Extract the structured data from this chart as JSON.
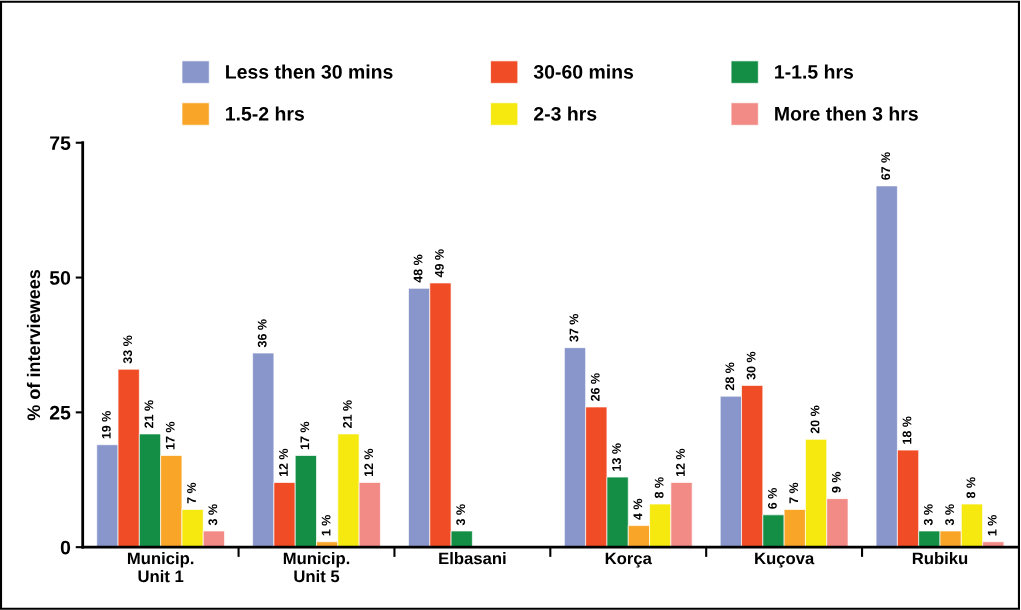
{
  "chart_data": {
    "type": "bar",
    "ylabel": "% of interviewees",
    "categories": [
      "Municip.\nUnit 1",
      "Municip.\nUnit 5",
      "Elbasani",
      "Korça",
      "Kuçova",
      "Rubiku"
    ],
    "series": [
      {
        "name": "Less then 30 mins",
        "color": "#8896cb",
        "values": [
          19,
          36,
          48,
          37,
          28,
          67
        ],
        "value_labels": [
          "19 %",
          "36 %",
          "48 %",
          "37 %",
          "28 %",
          "67 %"
        ]
      },
      {
        "name": "30-60 mins",
        "color": "#f04c25",
        "values": [
          33,
          12,
          49,
          26,
          30,
          18
        ],
        "value_labels": [
          "33 %",
          "12 %",
          "49 %",
          "26 %",
          "30 %",
          "18 %"
        ]
      },
      {
        "name": "1-1.5 hrs",
        "color": "#148e45",
        "values": [
          21,
          17,
          3,
          13,
          6,
          3
        ],
        "value_labels": [
          "21 %",
          "17 %",
          "3 %",
          "13 %",
          "6 %",
          "3 %"
        ]
      },
      {
        "name": "1.5-2 hrs",
        "color": "#f9a628",
        "values": [
          17,
          1,
          null,
          4,
          7,
          3
        ],
        "value_labels": [
          "17 %",
          "1 %",
          null,
          "4 %",
          "7 %",
          "3 %"
        ]
      },
      {
        "name": "2-3 hrs",
        "color": "#f5e90f",
        "values": [
          7,
          21,
          null,
          8,
          20,
          8
        ],
        "value_labels": [
          "7 %",
          "21 %",
          null,
          "8 %",
          "20 %",
          "8 %"
        ]
      },
      {
        "name": "More then 3 hrs",
        "color": "#f28a85",
        "values": [
          3,
          12,
          null,
          12,
          9,
          1
        ],
        "value_labels": [
          "3 %",
          "12 %",
          null,
          "12 %",
          "9 %",
          "1 %"
        ]
      }
    ],
    "ylim": [
      0,
      75
    ],
    "yticks": [
      0,
      25,
      50,
      75
    ],
    "grid": false,
    "legend": "top"
  }
}
